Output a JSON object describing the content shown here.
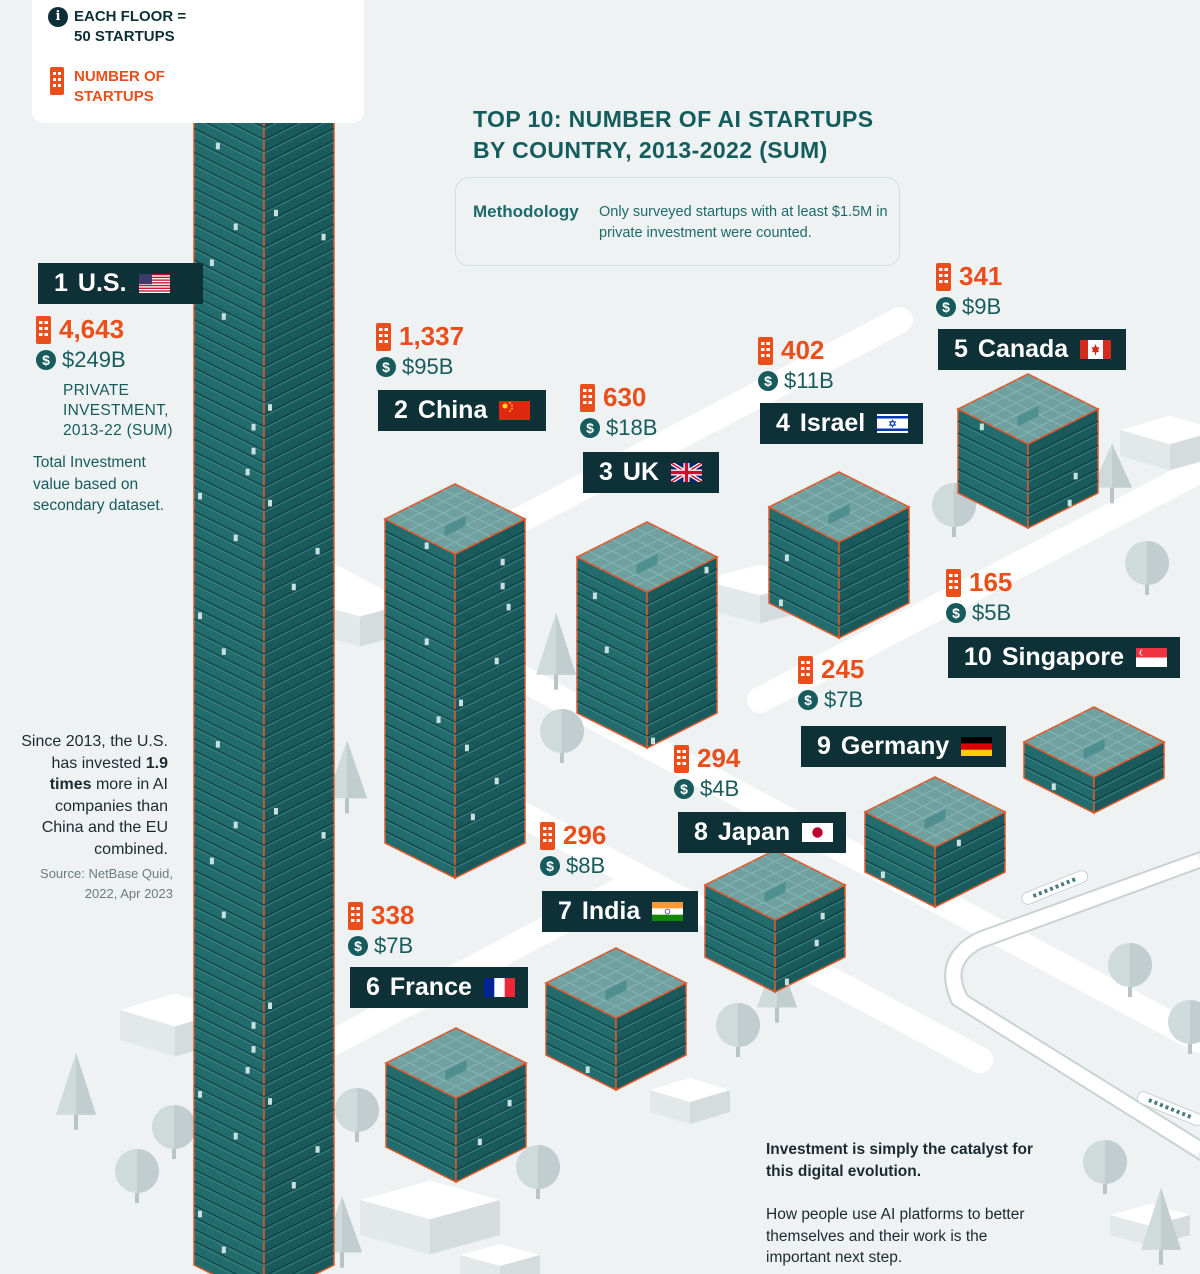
{
  "legend": {
    "floor_label": "EACH FLOOR = 50 STARTUPS",
    "count_label": "NUMBER OF STARTUPS"
  },
  "title_lines": [
    "TOP 10: NUMBER OF AI STARTUPS",
    "BY COUNTRY, 2013-2022 (SUM)"
  ],
  "methodology": {
    "label": "Methodology",
    "text": "Only surveyed startups with at least $1.5M in private investment were counted."
  },
  "us_notes": {
    "private_investment": "PRIVATE INVESTMENT, 2013-22 (SUM)",
    "total_investment": "Total Investment value based on secondary dataset."
  },
  "since_note": {
    "part1": "Since 2013, the U.S. has invested ",
    "bold": "1.9 times",
    "part2": " more in AI companies than China and the EU combined."
  },
  "source": "Source: NetBase Quid, 2022, Apr 2023",
  "bottom_note": {
    "bold": "Investment is simply the catalyst for this digital evolution.",
    "text": "How people use AI platforms to better themselves and their work is the important next step."
  },
  "colors": {
    "accent_orange": "#ea4e1b",
    "label_dark": "#0e3037",
    "teal": "#175b5c",
    "building_front": "#226c6e",
    "building_side": "#1a5a5c",
    "building_top": "#6fa1a1",
    "background": "#eff2f3"
  },
  "chart_data": {
    "type": "bar",
    "title": "TOP 10: NUMBER OF AI STARTUPS BY COUNTRY, 2013-2022 (SUM)",
    "unit": "Each floor = 50 startups",
    "series": [
      {
        "name": "Number of Startups",
        "values": [
          4643,
          1337,
          630,
          402,
          341,
          338,
          296,
          294,
          245,
          165
        ]
      },
      {
        "name": "Private Investment, 2013-22 (Sum)",
        "values": [
          "$249B",
          "$95B",
          "$18B",
          "$11B",
          "$9B",
          "$7B",
          "$8B",
          "$4B",
          "$7B",
          "$5B"
        ]
      }
    ],
    "countries": [
      {
        "rank": 1,
        "country": "U.S.",
        "flag": "us-flag",
        "startups": 4643,
        "startups_label": "4,643",
        "investment": "$249B"
      },
      {
        "rank": 2,
        "country": "China",
        "flag": "china-flag",
        "startups": 1337,
        "startups_label": "1,337",
        "investment": "$95B"
      },
      {
        "rank": 3,
        "country": "UK",
        "flag": "uk-flag",
        "startups": 630,
        "startups_label": "630",
        "investment": "$18B"
      },
      {
        "rank": 4,
        "country": "Israel",
        "flag": "israel-flag",
        "startups": 402,
        "startups_label": "402",
        "investment": "$11B"
      },
      {
        "rank": 5,
        "country": "Canada",
        "flag": "canada-flag",
        "startups": 341,
        "startups_label": "341",
        "investment": "$9B"
      },
      {
        "rank": 6,
        "country": "France",
        "flag": "france-flag",
        "startups": 338,
        "startups_label": "338",
        "investment": "$7B"
      },
      {
        "rank": 7,
        "country": "India",
        "flag": "india-flag",
        "startups": 296,
        "startups_label": "296",
        "investment": "$8B"
      },
      {
        "rank": 8,
        "country": "Japan",
        "flag": "japan-flag",
        "startups": 294,
        "startups_label": "294",
        "investment": "$4B"
      },
      {
        "rank": 9,
        "country": "Germany",
        "flag": "germany-flag",
        "startups": 245,
        "startups_label": "245",
        "investment": "$7B"
      },
      {
        "rank": 10,
        "country": "Singapore",
        "flag": "singapore-flag",
        "startups": 165,
        "startups_label": "165",
        "investment": "$5B"
      }
    ]
  }
}
